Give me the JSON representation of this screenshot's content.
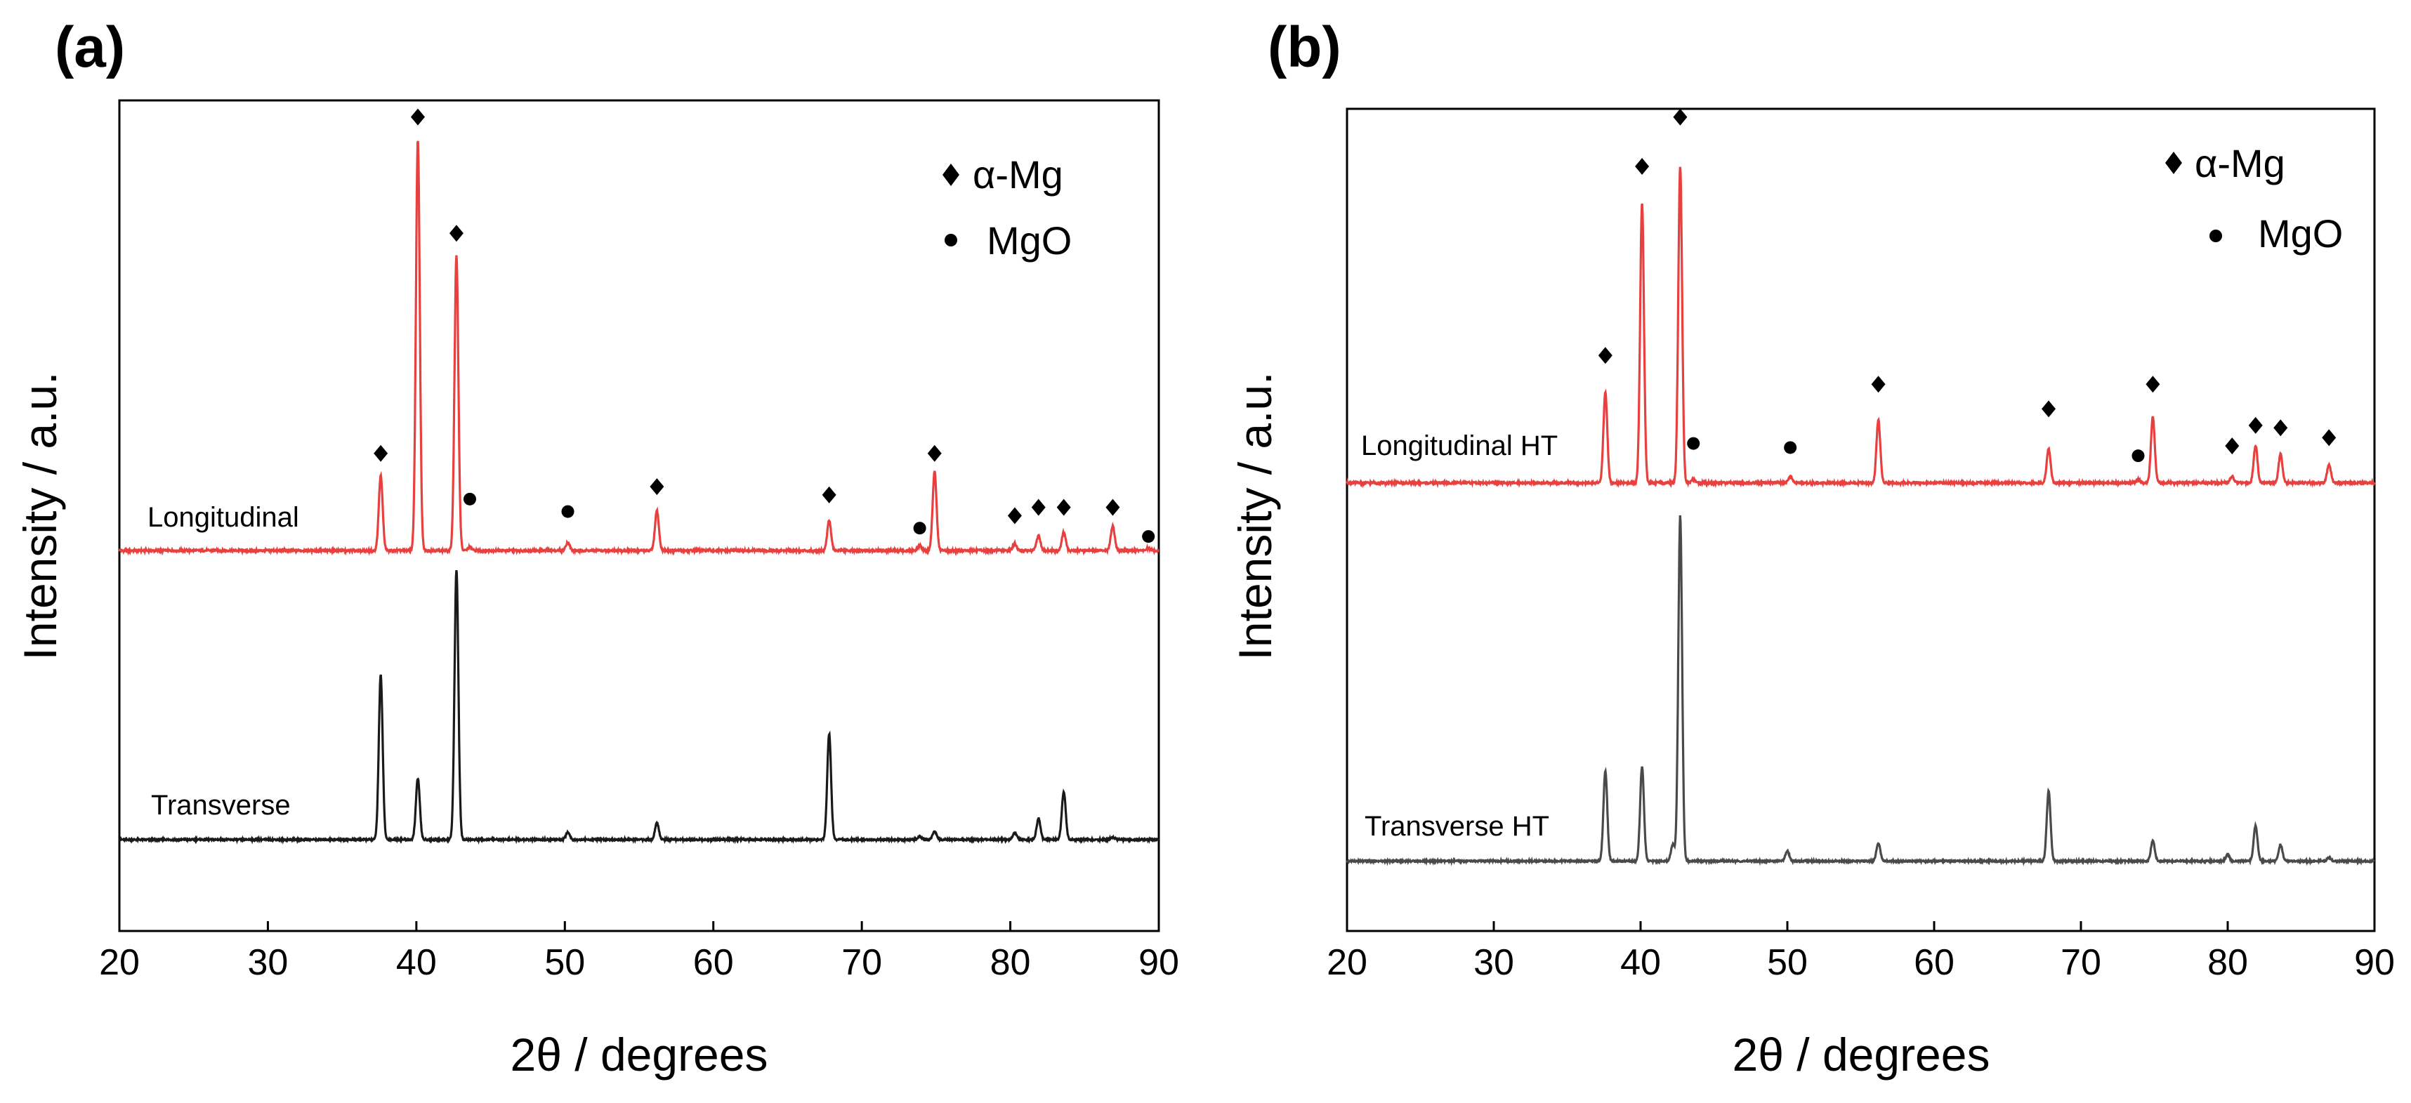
{
  "chart_data": [
    {
      "type": "line",
      "panel_label": "(a)",
      "xlabel": "2θ / degrees",
      "ylabel": "Intensity / a.u.",
      "xlim": [
        20,
        90
      ],
      "x_ticks": [
        20,
        30,
        40,
        50,
        60,
        70,
        80,
        90
      ],
      "ylim": [
        0,
        1
      ],
      "grid": false,
      "legend_position": "top-right",
      "legend": [
        {
          "marker": "diamond",
          "label": "α-Mg"
        },
        {
          "marker": "circle",
          "label": "MgO"
        }
      ],
      "series": [
        {
          "name": "Longitudinal",
          "color": "#e8403f",
          "baseline": 0.458,
          "noise": 0.0025,
          "peaks": [
            {
              "x": 37.6,
              "h": 0.09
            },
            {
              "x": 40.1,
              "h": 0.495
            },
            {
              "x": 42.7,
              "h": 0.355
            },
            {
              "x": 43.6,
              "h": 0.004
            },
            {
              "x": 50.2,
              "h": 0.01
            },
            {
              "x": 56.2,
              "h": 0.048
            },
            {
              "x": 67.8,
              "h": 0.036
            },
            {
              "x": 73.9,
              "h": 0.006
            },
            {
              "x": 74.9,
              "h": 0.095
            },
            {
              "x": 80.3,
              "h": 0.008
            },
            {
              "x": 81.9,
              "h": 0.018
            },
            {
              "x": 83.6,
              "h": 0.022
            },
            {
              "x": 86.9,
              "h": 0.03
            },
            {
              "x": 89.3,
              "h": 0.003
            }
          ]
        },
        {
          "name": "Transverse",
          "color": "#1a1a1a",
          "baseline": 0.11,
          "noise": 0.002,
          "peaks": [
            {
              "x": 37.6,
              "h": 0.198
            },
            {
              "x": 40.1,
              "h": 0.074
            },
            {
              "x": 42.7,
              "h": 0.325
            },
            {
              "x": 50.2,
              "h": 0.009
            },
            {
              "x": 56.2,
              "h": 0.02
            },
            {
              "x": 67.8,
              "h": 0.127
            },
            {
              "x": 73.9,
              "h": 0.004
            },
            {
              "x": 74.9,
              "h": 0.01
            },
            {
              "x": 80.3,
              "h": 0.008
            },
            {
              "x": 81.9,
              "h": 0.025
            },
            {
              "x": 83.6,
              "h": 0.058
            },
            {
              "x": 86.9,
              "h": 0.003
            }
          ]
        }
      ],
      "annotations": [
        {
          "marker": "diamond",
          "x": 37.6,
          "y": 0.575
        },
        {
          "marker": "diamond",
          "x": 40.1,
          "y": 0.98
        },
        {
          "marker": "diamond",
          "x": 42.7,
          "y": 0.84
        },
        {
          "marker": "circle",
          "x": 43.6,
          "y": 0.52
        },
        {
          "marker": "circle",
          "x": 50.2,
          "y": 0.505
        },
        {
          "marker": "diamond",
          "x": 56.2,
          "y": 0.535
        },
        {
          "marker": "diamond",
          "x": 67.8,
          "y": 0.525
        },
        {
          "marker": "circle",
          "x": 73.9,
          "y": 0.485
        },
        {
          "marker": "diamond",
          "x": 74.9,
          "y": 0.575
        },
        {
          "marker": "diamond",
          "x": 80.3,
          "y": 0.5
        },
        {
          "marker": "diamond",
          "x": 81.9,
          "y": 0.51
        },
        {
          "marker": "diamond",
          "x": 83.6,
          "y": 0.51
        },
        {
          "marker": "diamond",
          "x": 86.9,
          "y": 0.51
        },
        {
          "marker": "circle",
          "x": 89.3,
          "y": 0.475
        }
      ]
    },
    {
      "type": "line",
      "panel_label": "(b)",
      "xlabel": "2θ / degrees",
      "ylabel": "Intensity / a.u.",
      "xlim": [
        20,
        90
      ],
      "x_ticks": [
        20,
        30,
        40,
        50,
        60,
        70,
        80,
        90
      ],
      "ylim": [
        0,
        1
      ],
      "grid": false,
      "legend_position": "top-right",
      "legend": [
        {
          "marker": "diamond",
          "label": "α-Mg"
        },
        {
          "marker": "circle",
          "label": "MgO"
        }
      ],
      "series": [
        {
          "name": "Longitudinal HT",
          "color": "#e8403f",
          "baseline": 0.545,
          "noise": 0.0025,
          "peaks": [
            {
              "x": 37.6,
              "h": 0.11
            },
            {
              "x": 40.1,
              "h": 0.34
            },
            {
              "x": 42.7,
              "h": 0.385
            },
            {
              "x": 43.6,
              "h": 0.004
            },
            {
              "x": 50.2,
              "h": 0.008
            },
            {
              "x": 56.2,
              "h": 0.077
            },
            {
              "x": 67.8,
              "h": 0.042
            },
            {
              "x": 73.9,
              "h": 0.004
            },
            {
              "x": 74.9,
              "h": 0.08
            },
            {
              "x": 80.3,
              "h": 0.008
            },
            {
              "x": 81.9,
              "h": 0.045
            },
            {
              "x": 83.6,
              "h": 0.035
            },
            {
              "x": 86.9,
              "h": 0.022
            }
          ]
        },
        {
          "name": "Transverse HT",
          "color": "#4a4a4a",
          "baseline": 0.085,
          "noise": 0.002,
          "peaks": [
            {
              "x": 37.6,
              "h": 0.11
            },
            {
              "x": 40.1,
              "h": 0.115
            },
            {
              "x": 42.2,
              "h": 0.02
            },
            {
              "x": 42.7,
              "h": 0.42
            },
            {
              "x": 50.0,
              "h": 0.012
            },
            {
              "x": 56.2,
              "h": 0.022
            },
            {
              "x": 67.8,
              "h": 0.085
            },
            {
              "x": 74.9,
              "h": 0.025
            },
            {
              "x": 80.0,
              "h": 0.008
            },
            {
              "x": 81.9,
              "h": 0.043
            },
            {
              "x": 83.6,
              "h": 0.02
            },
            {
              "x": 86.9,
              "h": 0.004
            }
          ]
        }
      ],
      "annotations": [
        {
          "marker": "diamond",
          "x": 37.6,
          "y": 0.7
        },
        {
          "marker": "diamond",
          "x": 40.1,
          "y": 0.93
        },
        {
          "marker": "diamond",
          "x": 42.7,
          "y": 0.99
        },
        {
          "marker": "circle",
          "x": 43.6,
          "y": 0.593
        },
        {
          "marker": "circle",
          "x": 50.2,
          "y": 0.588
        },
        {
          "marker": "diamond",
          "x": 56.2,
          "y": 0.665
        },
        {
          "marker": "diamond",
          "x": 67.8,
          "y": 0.635
        },
        {
          "marker": "circle",
          "x": 73.9,
          "y": 0.578
        },
        {
          "marker": "diamond",
          "x": 74.9,
          "y": 0.665
        },
        {
          "marker": "diamond",
          "x": 80.3,
          "y": 0.59
        },
        {
          "marker": "diamond",
          "x": 81.9,
          "y": 0.615
        },
        {
          "marker": "diamond",
          "x": 83.6,
          "y": 0.612
        },
        {
          "marker": "diamond",
          "x": 86.9,
          "y": 0.6
        }
      ]
    }
  ]
}
